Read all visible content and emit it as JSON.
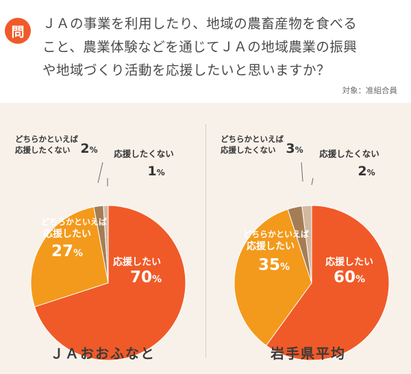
{
  "question": {
    "badge": "問",
    "line1": "ＪＡの事業を利用したり、地域の農畜産物を食べる",
    "line2": "こと、農業体験などを通じてＪＡの地域農業の振興",
    "line3": "や地域づくり活動を応援したいと思いますか？",
    "target": "対象：准組合員"
  },
  "colors": {
    "accent": "#f05a28",
    "support": "#f05a28",
    "somewhat_support": "#f39a1c",
    "somewhat_not": "#a57d55",
    "not_support": "#d2b8a0",
    "background": "#f8f1ea"
  },
  "chart_data": [
    {
      "type": "pie",
      "title": "ＪＡおおふなと",
      "slices": [
        {
          "label": "応援したい",
          "value": 70
        },
        {
          "label": "どちらかといえば応援したい",
          "value": 27
        },
        {
          "label": "どちらかといえば応援したくない",
          "value": 2
        },
        {
          "label": "応援したくない",
          "value": 1
        }
      ]
    },
    {
      "type": "pie",
      "title": "岩手県平均",
      "slices": [
        {
          "label": "応援したい",
          "value": 60
        },
        {
          "label": "どちらかといえば応援したい",
          "value": 35
        },
        {
          "label": "どちらかといえば応援したくない",
          "value": 3
        },
        {
          "label": "応援したくない",
          "value": 2
        }
      ]
    }
  ]
}
